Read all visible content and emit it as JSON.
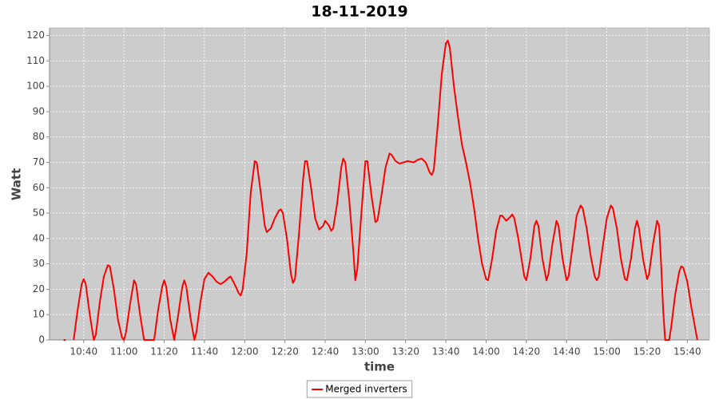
{
  "chart_data": {
    "type": "line",
    "title": "18-11-2019",
    "xlabel": "time",
    "ylabel": "Watt",
    "x": [
      "10:30",
      "10:31",
      "10:33",
      "10:35",
      "10:37",
      "10:39",
      "10:40",
      "10:41",
      "10:43",
      "10:45",
      "10:46",
      "10:48",
      "10:50",
      "10:52",
      "10:53",
      "10:55",
      "10:57",
      "10:59",
      "11:00",
      "11:01",
      "11:03",
      "11:05",
      "11:06",
      "11:08",
      "11:10",
      "11:15",
      "11:17",
      "11:19",
      "11:20",
      "11:21",
      "11:23",
      "11:25",
      "11:27",
      "11:29",
      "11:30",
      "11:31",
      "11:33",
      "11:35",
      "11:36",
      "11:38",
      "11:40",
      "11:42",
      "11:44",
      "11:46",
      "11:48",
      "11:50",
      "11:52",
      "11:53",
      "11:55",
      "11:57",
      "11:58",
      "11:59",
      "12:01",
      "12:03",
      "12:05",
      "12:06",
      "12:08",
      "12:10",
      "12:11",
      "12:13",
      "12:15",
      "12:17",
      "12:18",
      "12:19",
      "12:21",
      "12:23",
      "12:24",
      "12:25",
      "12:27",
      "12:29",
      "12:30",
      "12:31",
      "12:33",
      "12:35",
      "12:37",
      "12:39",
      "12:40",
      "12:42",
      "12:43",
      "12:44",
      "12:46",
      "12:48",
      "12:49",
      "12:50",
      "12:52",
      "12:54",
      "12:55",
      "12:56",
      "12:58",
      "13:00",
      "13:01",
      "13:03",
      "13:05",
      "13:06",
      "13:08",
      "13:10",
      "13:12",
      "13:13",
      "13:15",
      "13:17",
      "13:19",
      "13:21",
      "13:24",
      "13:26",
      "13:28",
      "13:30",
      "13:32",
      "13:33",
      "13:34",
      "13:36",
      "13:38",
      "13:40",
      "13:41",
      "13:42",
      "13:44",
      "13:46",
      "13:48",
      "13:50",
      "13:52",
      "13:54",
      "13:56",
      "13:58",
      "14:00",
      "14:01",
      "14:03",
      "14:05",
      "14:07",
      "14:08",
      "14:10",
      "14:12",
      "14:13",
      "14:14",
      "14:16",
      "14:18",
      "14:19",
      "14:20",
      "14:22",
      "14:24",
      "14:25",
      "14:26",
      "14:28",
      "14:30",
      "14:31",
      "14:33",
      "14:35",
      "14:36",
      "14:38",
      "14:40",
      "14:41",
      "14:43",
      "14:45",
      "14:47",
      "14:48",
      "14:50",
      "14:52",
      "14:54",
      "14:55",
      "14:56",
      "14:58",
      "15:00",
      "15:02",
      "15:03",
      "15:05",
      "15:07",
      "15:09",
      "15:10",
      "15:12",
      "15:14",
      "15:15",
      "15:16",
      "15:18",
      "15:20",
      "15:21",
      "15:23",
      "15:25",
      "15:26",
      "15:27",
      "15:28",
      "15:29",
      "15:31",
      "15:32",
      "15:34",
      "15:36",
      "15:37",
      "15:38",
      "15:40",
      "15:42",
      "15:45"
    ],
    "series": [
      {
        "name": "Merged inverters",
        "color": "#ff0000",
        "values": [
          0,
          0,
          null,
          0,
          12,
          22,
          24,
          22,
          10,
          0,
          2,
          15,
          25,
          29.5,
          29,
          20,
          8,
          1,
          0,
          3,
          14,
          23.5,
          22,
          10,
          0,
          0,
          12,
          21,
          23.5,
          21,
          8,
          0,
          10,
          21,
          23.5,
          21,
          9,
          0,
          3,
          15,
          24,
          26.5,
          25,
          23,
          22,
          23,
          24.5,
          25,
          22,
          18.5,
          17.5,
          20,
          34,
          58,
          70.5,
          70,
          58,
          45,
          42.5,
          44,
          48,
          51,
          51.5,
          50,
          40,
          26,
          22.5,
          24,
          42,
          63,
          70.5,
          70.5,
          60,
          48,
          43.5,
          45,
          47,
          45,
          43,
          44,
          54,
          68,
          71.5,
          70,
          55,
          35,
          23.5,
          28,
          50,
          70.5,
          70.5,
          57,
          46.5,
          47,
          57,
          68,
          73.5,
          73,
          70.5,
          69.5,
          70,
          70.5,
          70,
          71,
          71.5,
          70,
          66,
          65,
          67,
          85,
          105,
          117,
          118,
          115,
          100,
          88,
          77,
          70,
          62,
          52,
          40,
          30,
          24,
          23.5,
          32,
          43,
          49,
          49,
          47,
          48.5,
          49.5,
          48,
          40,
          30,
          25,
          23.5,
          32,
          45,
          47,
          45,
          32,
          23.5,
          26,
          38,
          47,
          45,
          32,
          23.5,
          25,
          37,
          49,
          53,
          52,
          44,
          33,
          25,
          23.5,
          25,
          37,
          48,
          53,
          52,
          44,
          32,
          24,
          23.5,
          32,
          44,
          47,
          44,
          32,
          24,
          26,
          38,
          47,
          45,
          30,
          12,
          0,
          0,
          5,
          18,
          27,
          29,
          28.5,
          23,
          13,
          0
        ]
      }
    ],
    "xlim": [
      "10:23",
      "15:51"
    ],
    "xticks": [
      "10:40",
      "11:00",
      "11:20",
      "11:40",
      "12:00",
      "12:20",
      "12:40",
      "13:00",
      "13:20",
      "13:40",
      "14:00",
      "14:20",
      "14:40",
      "15:00",
      "15:20",
      "15:40"
    ],
    "ylim": [
      0,
      123
    ],
    "yticks": [
      0,
      10,
      20,
      30,
      40,
      50,
      60,
      70,
      80,
      90,
      100,
      110,
      120
    ],
    "grid": true,
    "legend": "bottom"
  }
}
